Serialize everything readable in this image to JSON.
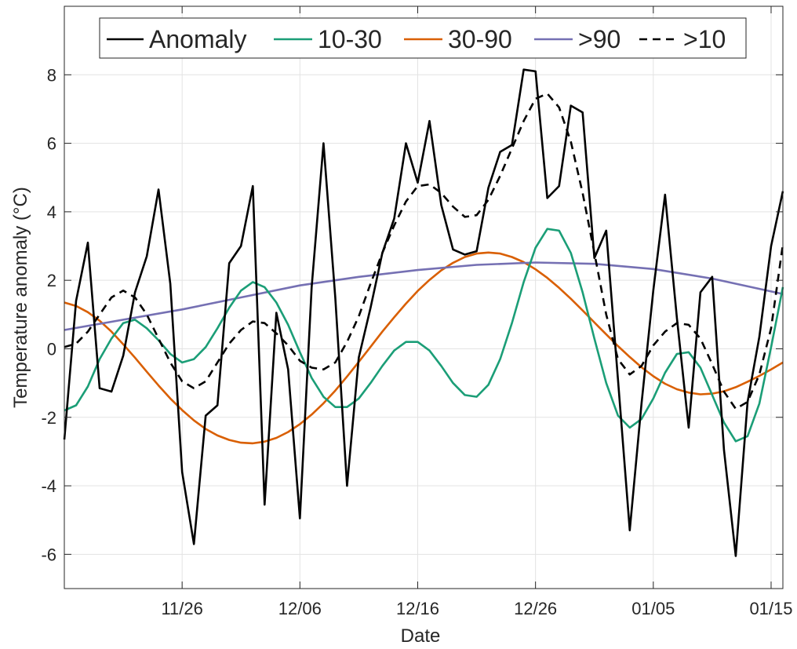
{
  "chart_data": {
    "type": "line",
    "xlabel": "Date",
    "ylabel": "Temperature anomaly (°C)",
    "x_start": "2024-11-16",
    "x_end": "2025-01-16",
    "x_ticks": [
      {
        "date": "2024-11-26",
        "label": "11/26"
      },
      {
        "date": "2024-12-06",
        "label": "12/06"
      },
      {
        "date": "2024-12-16",
        "label": "12/16"
      },
      {
        "date": "2024-12-26",
        "label": "12/26"
      },
      {
        "date": "2025-01-05",
        "label": "01/05"
      },
      {
        "date": "2025-01-15",
        "label": "01/15"
      }
    ],
    "ylim": [
      -7,
      10
    ],
    "y_ticks": [
      -6,
      -4,
      -2,
      0,
      2,
      4,
      6,
      8
    ],
    "grid": true,
    "legend": {
      "placement": "top",
      "orientation": "horizontal"
    },
    "series": [
      {
        "name": "Anomaly",
        "color": "#000000",
        "dash": "solid",
        "points": [
          [
            "2024-11-16",
            -2.65
          ],
          [
            "2024-11-17",
            1.4
          ],
          [
            "2024-11-18",
            3.1
          ],
          [
            "2024-11-19",
            -1.15
          ],
          [
            "2024-11-20",
            -1.25
          ],
          [
            "2024-11-21",
            -0.2
          ],
          [
            "2024-11-22",
            1.65
          ],
          [
            "2024-11-23",
            2.7
          ],
          [
            "2024-11-24",
            4.65
          ],
          [
            "2024-11-25",
            1.9
          ],
          [
            "2024-11-26",
            -3.6
          ],
          [
            "2024-11-27",
            -5.7
          ],
          [
            "2024-11-28",
            -1.95
          ],
          [
            "2024-11-29",
            -1.65
          ],
          [
            "2024-11-30",
            2.5
          ],
          [
            "2024-12-01",
            3.0
          ],
          [
            "2024-12-02",
            4.75
          ],
          [
            "2024-12-03",
            -4.55
          ],
          [
            "2024-12-04",
            1.05
          ],
          [
            "2024-12-05",
            -0.6
          ],
          [
            "2024-12-06",
            -4.95
          ],
          [
            "2024-12-07",
            1.8
          ],
          [
            "2024-12-08",
            6.0
          ],
          [
            "2024-12-09",
            1.5
          ],
          [
            "2024-12-10",
            -4.0
          ],
          [
            "2024-12-11",
            -0.25
          ],
          [
            "2024-12-12",
            1.2
          ],
          [
            "2024-12-13",
            2.8
          ],
          [
            "2024-12-14",
            3.8
          ],
          [
            "2024-12-15",
            6.0
          ],
          [
            "2024-12-16",
            4.85
          ],
          [
            "2024-12-17",
            6.65
          ],
          [
            "2024-12-18",
            4.2
          ],
          [
            "2024-12-19",
            2.9
          ],
          [
            "2024-12-20",
            2.75
          ],
          [
            "2024-12-21",
            2.85
          ],
          [
            "2024-12-22",
            4.7
          ],
          [
            "2024-12-23",
            5.75
          ],
          [
            "2024-12-24",
            5.95
          ],
          [
            "2024-12-25",
            8.15
          ],
          [
            "2024-12-26",
            8.1
          ],
          [
            "2024-12-27",
            4.4
          ],
          [
            "2024-12-28",
            4.75
          ],
          [
            "2024-12-29",
            7.1
          ],
          [
            "2024-12-30",
            6.9
          ],
          [
            "2024-12-31",
            2.65
          ],
          [
            "2025-01-01",
            3.45
          ],
          [
            "2025-01-02",
            -0.9
          ],
          [
            "2025-01-03",
            -5.3
          ],
          [
            "2025-01-04",
            -1.6
          ],
          [
            "2025-01-05",
            1.7
          ],
          [
            "2025-01-06",
            4.5
          ],
          [
            "2025-01-07",
            0.9
          ],
          [
            "2025-01-08",
            -2.3
          ],
          [
            "2025-01-09",
            1.65
          ],
          [
            "2025-01-10",
            2.1
          ],
          [
            "2025-01-11",
            -2.95
          ],
          [
            "2025-01-12",
            -6.05
          ],
          [
            "2025-01-13",
            -1.55
          ],
          [
            "2025-01-14",
            0.35
          ],
          [
            "2025-01-15",
            3.0
          ],
          [
            "2025-01-16",
            4.6
          ]
        ]
      },
      {
        "name": "10-30",
        "color": "#1b9e77",
        "dash": "solid",
        "points": [
          [
            "2024-11-16",
            -1.8
          ],
          [
            "2024-11-17",
            -1.65
          ],
          [
            "2024-11-18",
            -1.1
          ],
          [
            "2024-11-19",
            -0.3
          ],
          [
            "2024-11-20",
            0.3
          ],
          [
            "2024-11-21",
            0.75
          ],
          [
            "2024-11-22",
            0.85
          ],
          [
            "2024-11-23",
            0.6
          ],
          [
            "2024-11-24",
            0.25
          ],
          [
            "2024-11-25",
            -0.15
          ],
          [
            "2024-11-26",
            -0.4
          ],
          [
            "2024-11-27",
            -0.3
          ],
          [
            "2024-11-28",
            0.05
          ],
          [
            "2024-11-29",
            0.6
          ],
          [
            "2024-11-30",
            1.2
          ],
          [
            "2024-12-01",
            1.7
          ],
          [
            "2024-12-02",
            1.95
          ],
          [
            "2024-12-03",
            1.8
          ],
          [
            "2024-12-04",
            1.35
          ],
          [
            "2024-12-05",
            0.7
          ],
          [
            "2024-12-06",
            -0.1
          ],
          [
            "2024-12-07",
            -0.85
          ],
          [
            "2024-12-08",
            -1.4
          ],
          [
            "2024-12-09",
            -1.7
          ],
          [
            "2024-12-10",
            -1.7
          ],
          [
            "2024-12-11",
            -1.45
          ],
          [
            "2024-12-12",
            -1.0
          ],
          [
            "2024-12-13",
            -0.5
          ],
          [
            "2024-12-14",
            -0.05
          ],
          [
            "2024-12-15",
            0.2
          ],
          [
            "2024-12-16",
            0.2
          ],
          [
            "2024-12-17",
            -0.05
          ],
          [
            "2024-12-18",
            -0.5
          ],
          [
            "2024-12-19",
            -1.0
          ],
          [
            "2024-12-20",
            -1.35
          ],
          [
            "2024-12-21",
            -1.4
          ],
          [
            "2024-12-22",
            -1.05
          ],
          [
            "2024-12-23",
            -0.3
          ],
          [
            "2024-12-24",
            0.75
          ],
          [
            "2024-12-25",
            1.95
          ],
          [
            "2024-12-26",
            2.95
          ],
          [
            "2024-12-27",
            3.5
          ],
          [
            "2024-12-28",
            3.45
          ],
          [
            "2024-12-29",
            2.8
          ],
          [
            "2024-12-30",
            1.65
          ],
          [
            "2024-12-31",
            0.3
          ],
          [
            "2025-01-01",
            -1.0
          ],
          [
            "2025-01-02",
            -1.95
          ],
          [
            "2025-01-03",
            -2.3
          ],
          [
            "2025-01-04",
            -2.05
          ],
          [
            "2025-01-05",
            -1.45
          ],
          [
            "2025-01-06",
            -0.7
          ],
          [
            "2025-01-07",
            -0.15
          ],
          [
            "2025-01-08",
            -0.1
          ],
          [
            "2025-01-09",
            -0.55
          ],
          [
            "2025-01-10",
            -1.35
          ],
          [
            "2025-01-11",
            -2.15
          ],
          [
            "2025-01-12",
            -2.7
          ],
          [
            "2025-01-13",
            -2.55
          ],
          [
            "2025-01-14",
            -1.6
          ],
          [
            "2025-01-15",
            0.05
          ],
          [
            "2025-01-16",
            1.8
          ]
        ]
      },
      {
        "name": "30-90",
        "color": "#d95f02",
        "dash": "solid",
        "points": [
          [
            "2024-11-16",
            1.35
          ],
          [
            "2024-11-17",
            1.25
          ],
          [
            "2024-11-18",
            1.07
          ],
          [
            "2024-11-19",
            0.82
          ],
          [
            "2024-11-20",
            0.5
          ],
          [
            "2024-11-21",
            0.13
          ],
          [
            "2024-11-22",
            -0.26
          ],
          [
            "2024-11-23",
            -0.67
          ],
          [
            "2024-11-24",
            -1.07
          ],
          [
            "2024-11-25",
            -1.45
          ],
          [
            "2024-11-26",
            -1.79
          ],
          [
            "2024-11-27",
            -2.09
          ],
          [
            "2024-11-28",
            -2.34
          ],
          [
            "2024-11-29",
            -2.53
          ],
          [
            "2024-11-30",
            -2.66
          ],
          [
            "2024-12-01",
            -2.74
          ],
          [
            "2024-12-02",
            -2.76
          ],
          [
            "2024-12-03",
            -2.71
          ],
          [
            "2024-12-04",
            -2.6
          ],
          [
            "2024-12-05",
            -2.43
          ],
          [
            "2024-12-06",
            -2.2
          ],
          [
            "2024-12-07",
            -1.92
          ],
          [
            "2024-12-08",
            -1.59
          ],
          [
            "2024-12-09",
            -1.22
          ],
          [
            "2024-12-10",
            -0.81
          ],
          [
            "2024-12-11",
            -0.38
          ],
          [
            "2024-12-12",
            0.06
          ],
          [
            "2024-12-13",
            0.5
          ],
          [
            "2024-12-14",
            0.92
          ],
          [
            "2024-12-15",
            1.32
          ],
          [
            "2024-12-16",
            1.69
          ],
          [
            "2024-12-17",
            2.01
          ],
          [
            "2024-12-18",
            2.29
          ],
          [
            "2024-12-19",
            2.51
          ],
          [
            "2024-12-20",
            2.68
          ],
          [
            "2024-12-21",
            2.78
          ],
          [
            "2024-12-22",
            2.81
          ],
          [
            "2024-12-23",
            2.78
          ],
          [
            "2024-12-24",
            2.68
          ],
          [
            "2024-12-25",
            2.53
          ],
          [
            "2024-12-26",
            2.32
          ],
          [
            "2024-12-27",
            2.07
          ],
          [
            "2024-12-28",
            1.78
          ],
          [
            "2024-12-29",
            1.46
          ],
          [
            "2024-12-30",
            1.12
          ],
          [
            "2024-12-31",
            0.77
          ],
          [
            "2025-01-01",
            0.42
          ],
          [
            "2025-01-02",
            0.08
          ],
          [
            "2025-01-03",
            -0.24
          ],
          [
            "2025-01-04",
            -0.54
          ],
          [
            "2025-01-05",
            -0.8
          ],
          [
            "2025-01-06",
            -1.02
          ],
          [
            "2025-01-07",
            -1.18
          ],
          [
            "2025-01-08",
            -1.28
          ],
          [
            "2025-01-09",
            -1.33
          ],
          [
            "2025-01-10",
            -1.31
          ],
          [
            "2025-01-11",
            -1.24
          ],
          [
            "2025-01-12",
            -1.12
          ],
          [
            "2025-01-13",
            -0.96
          ],
          [
            "2025-01-14",
            -0.79
          ],
          [
            "2025-01-15",
            -0.6
          ],
          [
            "2025-01-16",
            -0.4
          ]
        ]
      },
      {
        "name": ">90",
        "color": "#7570b3",
        "dash": "solid",
        "points": [
          [
            "2024-11-16",
            0.55
          ],
          [
            "2024-11-21",
            0.85
          ],
          [
            "2024-11-26",
            1.15
          ],
          [
            "2024-12-01",
            1.5
          ],
          [
            "2024-12-06",
            1.85
          ],
          [
            "2024-12-11",
            2.1
          ],
          [
            "2024-12-16",
            2.3
          ],
          [
            "2024-12-21",
            2.45
          ],
          [
            "2024-12-26",
            2.52
          ],
          [
            "2024-12-31",
            2.48
          ],
          [
            "2025-01-05",
            2.33
          ],
          [
            "2025-01-10",
            2.05
          ],
          [
            "2025-01-16",
            1.6
          ]
        ]
      },
      {
        "name": ">10",
        "color": "#000000",
        "dash": "dashed",
        "points": [
          [
            "2024-11-16",
            0.05
          ],
          [
            "2024-11-17",
            0.15
          ],
          [
            "2024-11-18",
            0.5
          ],
          [
            "2024-11-19",
            1.0
          ],
          [
            "2024-11-20",
            1.5
          ],
          [
            "2024-11-21",
            1.7
          ],
          [
            "2024-11-22",
            1.5
          ],
          [
            "2024-11-23",
            1.0
          ],
          [
            "2024-11-24",
            0.3
          ],
          [
            "2024-11-25",
            -0.4
          ],
          [
            "2024-11-26",
            -0.95
          ],
          [
            "2024-11-27",
            -1.15
          ],
          [
            "2024-11-28",
            -0.95
          ],
          [
            "2024-11-29",
            -0.4
          ],
          [
            "2024-11-30",
            0.15
          ],
          [
            "2024-12-01",
            0.55
          ],
          [
            "2024-12-02",
            0.8
          ],
          [
            "2024-12-03",
            0.75
          ],
          [
            "2024-12-04",
            0.45
          ],
          [
            "2024-12-05",
            0.1
          ],
          [
            "2024-12-06",
            -0.35
          ],
          [
            "2024-12-07",
            -0.55
          ],
          [
            "2024-12-08",
            -0.6
          ],
          [
            "2024-12-09",
            -0.4
          ],
          [
            "2024-12-10",
            0.2
          ],
          [
            "2024-12-11",
            0.95
          ],
          [
            "2024-12-12",
            1.9
          ],
          [
            "2024-12-13",
            2.8
          ],
          [
            "2024-12-14",
            3.6
          ],
          [
            "2024-12-15",
            4.3
          ],
          [
            "2024-12-16",
            4.75
          ],
          [
            "2024-12-17",
            4.8
          ],
          [
            "2024-12-18",
            4.55
          ],
          [
            "2024-12-19",
            4.15
          ],
          [
            "2024-12-20",
            3.85
          ],
          [
            "2024-12-21",
            3.9
          ],
          [
            "2024-12-22",
            4.35
          ],
          [
            "2024-12-23",
            5.05
          ],
          [
            "2024-12-24",
            5.85
          ],
          [
            "2024-12-25",
            6.65
          ],
          [
            "2024-12-26",
            7.3
          ],
          [
            "2024-12-27",
            7.45
          ],
          [
            "2024-12-28",
            7.05
          ],
          [
            "2024-12-29",
            6.05
          ],
          [
            "2024-12-30",
            4.55
          ],
          [
            "2024-12-31",
            2.8
          ],
          [
            "2025-01-01",
            1.0
          ],
          [
            "2025-01-02",
            -0.3
          ],
          [
            "2025-01-03",
            -0.75
          ],
          [
            "2025-01-04",
            -0.5
          ],
          [
            "2025-01-05",
            0.1
          ],
          [
            "2025-01-06",
            0.5
          ],
          [
            "2025-01-07",
            0.75
          ],
          [
            "2025-01-08",
            0.7
          ],
          [
            "2025-01-09",
            0.3
          ],
          [
            "2025-01-10",
            -0.45
          ],
          [
            "2025-01-11",
            -1.25
          ],
          [
            "2025-01-12",
            -1.75
          ],
          [
            "2025-01-13",
            -1.55
          ],
          [
            "2025-01-14",
            -0.75
          ],
          [
            "2025-01-15",
            0.6
          ],
          [
            "2025-01-16",
            3.05
          ]
        ]
      }
    ]
  }
}
